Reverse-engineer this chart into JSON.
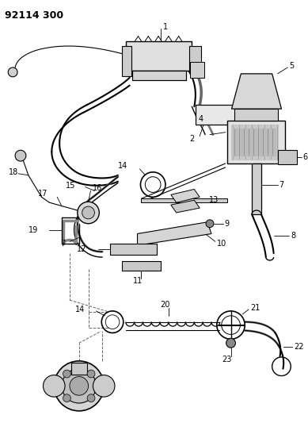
{
  "title": "92114 300",
  "bg_color": "#ffffff",
  "line_color": "#000000",
  "label_color": "#000000",
  "title_fontsize": 9,
  "label_fontsize": 7,
  "figsize": [
    3.89,
    5.33
  ],
  "dpi": 100
}
